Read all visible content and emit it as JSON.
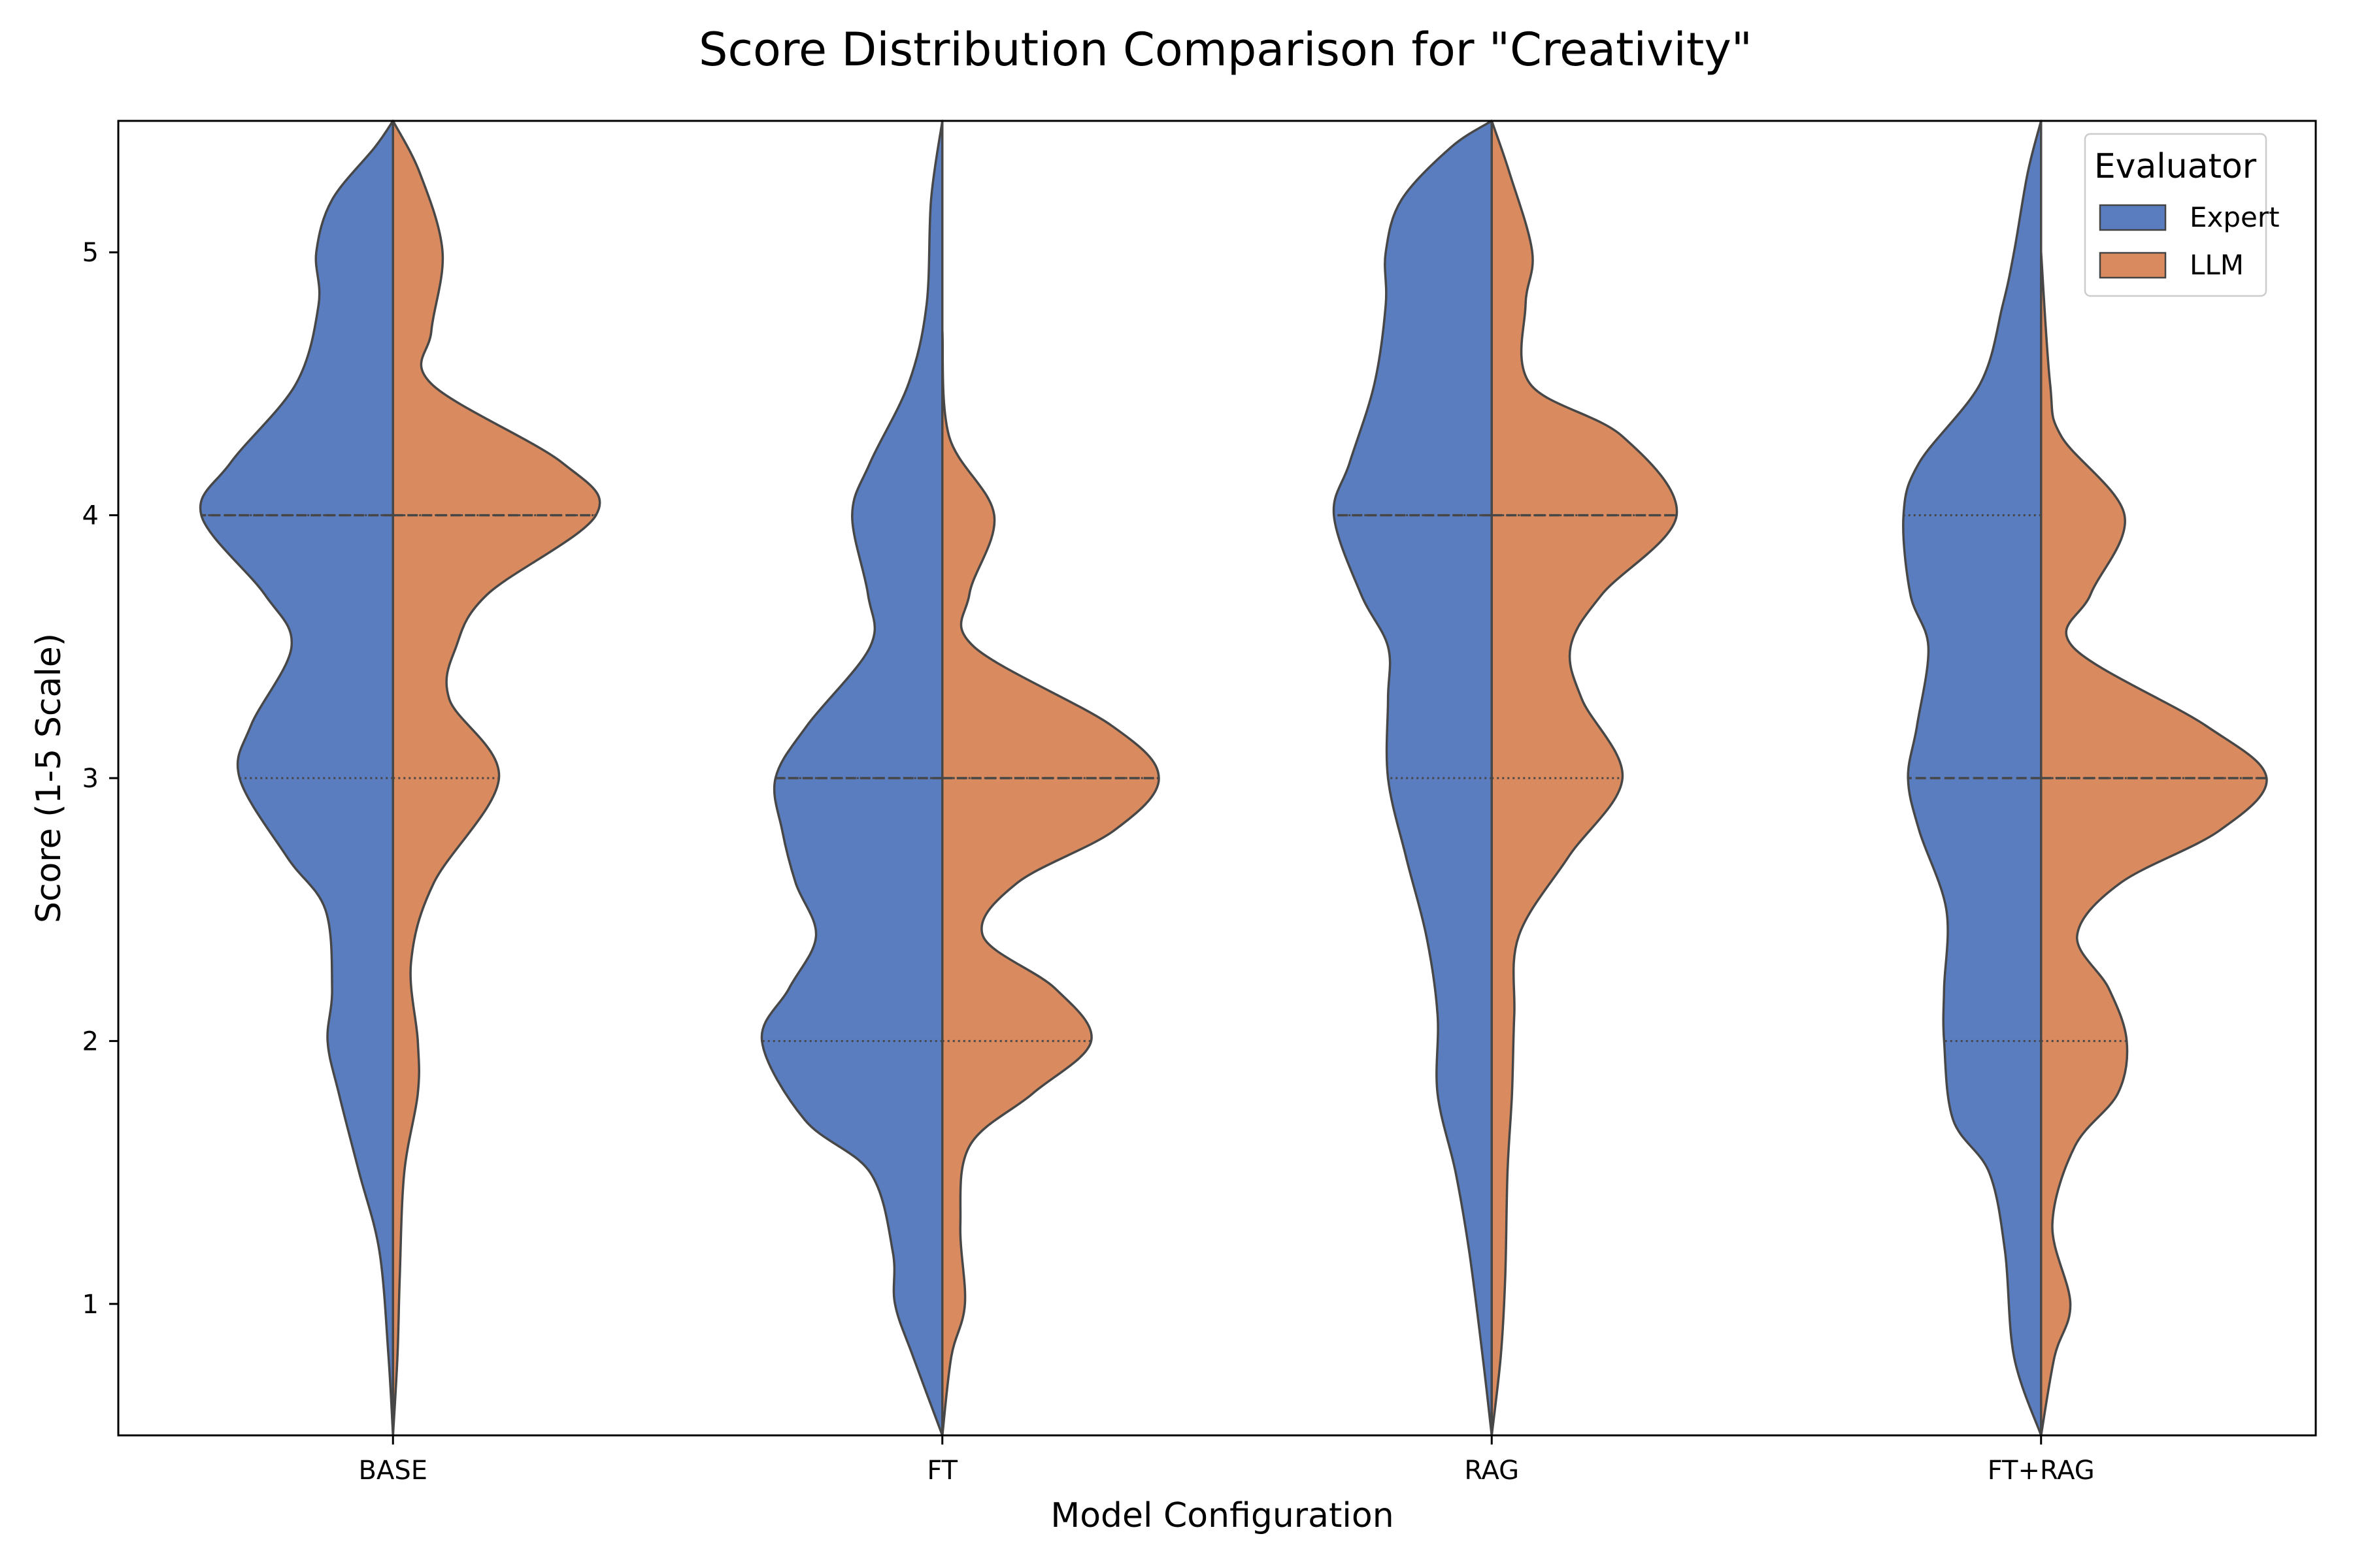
{
  "chart_data": {
    "type": "violin",
    "title": "Score Distribution Comparison for \"Creativity\"",
    "xlabel": "Model Configuration",
    "ylabel": "Score (1-5 Scale)",
    "categories": [
      "BASE",
      "FT",
      "RAG",
      "FT+RAG"
    ],
    "y_ticks": [
      1,
      2,
      3,
      4,
      5
    ],
    "ylim": [
      0.5,
      5.5
    ],
    "grid": false,
    "split": true,
    "legend": {
      "title": "Evaluator",
      "position": "top-right"
    },
    "series": [
      {
        "name": "Expert",
        "color": "#5a7dc0",
        "side": "left",
        "distributions": [
          {
            "category": "BASE",
            "quartiles": [
              3,
              4,
              4
            ],
            "density": [
              [
                0.5,
                0.0
              ],
              [
                0.8,
                0.02
              ],
              [
                1.2,
                0.06
              ],
              [
                1.5,
                0.15
              ],
              [
                1.8,
                0.24
              ],
              [
                2.0,
                0.29
              ],
              [
                2.2,
                0.27
              ],
              [
                2.5,
                0.3
              ],
              [
                2.7,
                0.47
              ],
              [
                3.0,
                0.68
              ],
              [
                3.2,
                0.63
              ],
              [
                3.5,
                0.45
              ],
              [
                3.7,
                0.57
              ],
              [
                4.0,
                0.85
              ],
              [
                4.2,
                0.72
              ],
              [
                4.5,
                0.43
              ],
              [
                4.8,
                0.33
              ],
              [
                5.0,
                0.34
              ],
              [
                5.2,
                0.27
              ],
              [
                5.4,
                0.08
              ],
              [
                5.5,
                0.0
              ]
            ]
          },
          {
            "category": "FT",
            "quartiles": [
              2,
              3,
              3
            ],
            "density": [
              [
                0.5,
                0.0
              ],
              [
                0.8,
                0.13
              ],
              [
                1.0,
                0.21
              ],
              [
                1.2,
                0.22
              ],
              [
                1.5,
                0.32
              ],
              [
                1.7,
                0.61
              ],
              [
                2.0,
                0.8
              ],
              [
                2.2,
                0.68
              ],
              [
                2.4,
                0.56
              ],
              [
                2.6,
                0.65
              ],
              [
                2.8,
                0.71
              ],
              [
                3.0,
                0.74
              ],
              [
                3.2,
                0.6
              ],
              [
                3.5,
                0.32
              ],
              [
                3.7,
                0.33
              ],
              [
                4.0,
                0.4
              ],
              [
                4.2,
                0.32
              ],
              [
                4.5,
                0.15
              ],
              [
                4.8,
                0.07
              ],
              [
                5.2,
                0.05
              ],
              [
                5.5,
                0.0
              ]
            ]
          },
          {
            "category": "RAG",
            "quartiles": [
              3,
              4,
              4
            ],
            "density": [
              [
                0.5,
                0.0
              ],
              [
                0.8,
                0.04
              ],
              [
                1.2,
                0.1
              ],
              [
                1.5,
                0.16
              ],
              [
                1.8,
                0.24
              ],
              [
                2.1,
                0.24
              ],
              [
                2.4,
                0.29
              ],
              [
                2.7,
                0.38
              ],
              [
                3.0,
                0.46
              ],
              [
                3.3,
                0.46
              ],
              [
                3.5,
                0.46
              ],
              [
                3.7,
                0.58
              ],
              [
                4.0,
                0.7
              ],
              [
                4.2,
                0.63
              ],
              [
                4.5,
                0.52
              ],
              [
                4.8,
                0.47
              ],
              [
                5.0,
                0.47
              ],
              [
                5.2,
                0.4
              ],
              [
                5.4,
                0.18
              ],
              [
                5.5,
                0.0
              ]
            ]
          },
          {
            "category": "FT+RAG",
            "quartiles": [
              2,
              3,
              4
            ],
            "density": [
              [
                0.5,
                0.0
              ],
              [
                0.8,
                0.12
              ],
              [
                1.2,
                0.16
              ],
              [
                1.5,
                0.23
              ],
              [
                1.7,
                0.39
              ],
              [
                2.0,
                0.43
              ],
              [
                2.2,
                0.43
              ],
              [
                2.5,
                0.42
              ],
              [
                2.8,
                0.54
              ],
              [
                3.0,
                0.59
              ],
              [
                3.2,
                0.55
              ],
              [
                3.5,
                0.5
              ],
              [
                3.7,
                0.58
              ],
              [
                4.0,
                0.61
              ],
              [
                4.2,
                0.54
              ],
              [
                4.5,
                0.27
              ],
              [
                4.8,
                0.17
              ],
              [
                5.0,
                0.12
              ],
              [
                5.3,
                0.06
              ],
              [
                5.5,
                0.0
              ]
            ]
          }
        ]
      },
      {
        "name": "LLM",
        "color": "#d98a5e",
        "side": "right",
        "distributions": [
          {
            "category": "BASE",
            "quartiles": [
              3,
              4,
              4
            ],
            "density": [
              [
                0.5,
                0.0
              ],
              [
                0.8,
                0.02
              ],
              [
                1.1,
                0.03
              ],
              [
                1.5,
                0.05
              ],
              [
                1.8,
                0.11
              ],
              [
                2.0,
                0.11
              ],
              [
                2.3,
                0.08
              ],
              [
                2.6,
                0.18
              ],
              [
                3.0,
                0.47
              ],
              [
                3.3,
                0.25
              ],
              [
                3.5,
                0.28
              ],
              [
                3.7,
                0.42
              ],
              [
                4.0,
                0.9
              ],
              [
                4.2,
                0.75
              ],
              [
                4.5,
                0.17
              ],
              [
                4.7,
                0.17
              ],
              [
                5.0,
                0.22
              ],
              [
                5.3,
                0.12
              ],
              [
                5.5,
                0.0
              ]
            ]
          },
          {
            "category": "FT",
            "quartiles": [
              2,
              3,
              3
            ],
            "density": [
              [
                0.5,
                0.0
              ],
              [
                0.8,
                0.04
              ],
              [
                1.0,
                0.1
              ],
              [
                1.3,
                0.08
              ],
              [
                1.6,
                0.12
              ],
              [
                1.8,
                0.4
              ],
              [
                2.0,
                0.66
              ],
              [
                2.2,
                0.5
              ],
              [
                2.4,
                0.18
              ],
              [
                2.6,
                0.33
              ],
              [
                2.8,
                0.76
              ],
              [
                3.0,
                0.96
              ],
              [
                3.2,
                0.75
              ],
              [
                3.5,
                0.14
              ],
              [
                3.7,
                0.12
              ],
              [
                4.0,
                0.23
              ],
              [
                4.3,
                0.03
              ],
              [
                4.7,
                0.0
              ]
            ]
          },
          {
            "category": "RAG",
            "quartiles": [
              3,
              4,
              4
            ],
            "density": [
              [
                0.5,
                0.0
              ],
              [
                0.8,
                0.04
              ],
              [
                1.1,
                0.06
              ],
              [
                1.5,
                0.07
              ],
              [
                1.8,
                0.09
              ],
              [
                2.1,
                0.1
              ],
              [
                2.4,
                0.12
              ],
              [
                2.7,
                0.34
              ],
              [
                3.0,
                0.58
              ],
              [
                3.3,
                0.4
              ],
              [
                3.5,
                0.35
              ],
              [
                3.7,
                0.49
              ],
              [
                4.0,
                0.82
              ],
              [
                4.3,
                0.58
              ],
              [
                4.5,
                0.17
              ],
              [
                4.8,
                0.15
              ],
              [
                5.0,
                0.18
              ],
              [
                5.3,
                0.08
              ],
              [
                5.5,
                0.0
              ]
            ]
          },
          {
            "category": "FT+RAG",
            "quartiles": [
              2,
              3,
              3
            ],
            "density": [
              [
                0.5,
                0.0
              ],
              [
                0.8,
                0.06
              ],
              [
                1.0,
                0.13
              ],
              [
                1.3,
                0.05
              ],
              [
                1.6,
                0.15
              ],
              [
                1.8,
                0.34
              ],
              [
                2.0,
                0.38
              ],
              [
                2.2,
                0.3
              ],
              [
                2.4,
                0.16
              ],
              [
                2.6,
                0.35
              ],
              [
                2.8,
                0.79
              ],
              [
                3.0,
                1.0
              ],
              [
                3.2,
                0.73
              ],
              [
                3.5,
                0.14
              ],
              [
                3.7,
                0.22
              ],
              [
                4.0,
                0.37
              ],
              [
                4.3,
                0.09
              ],
              [
                4.5,
                0.04
              ],
              [
                5.0,
                0.0
              ]
            ]
          }
        ]
      }
    ]
  }
}
